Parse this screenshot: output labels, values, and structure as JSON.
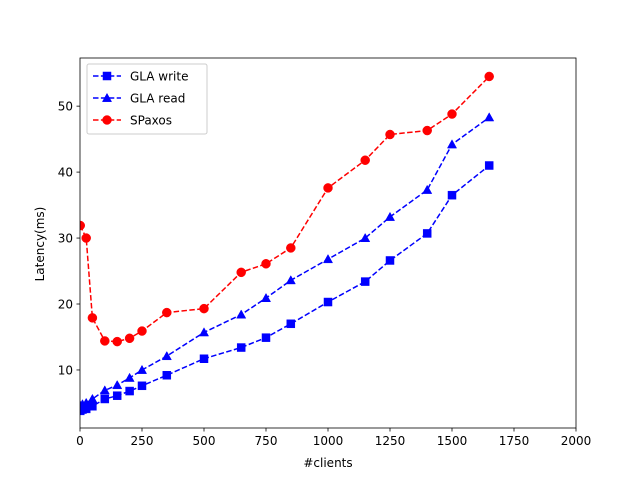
{
  "chart_data": {
    "type": "line",
    "title": "",
    "xlabel": "#clients",
    "ylabel": "Latency(ms)",
    "xlim": [
      0,
      2000
    ],
    "ylim": [
      1.2,
      57.3
    ],
    "xticks": [
      0,
      250,
      500,
      750,
      1000,
      1250,
      1500,
      1750,
      2000
    ],
    "yticks": [
      10,
      20,
      30,
      40,
      50
    ],
    "grid": false,
    "legend_position": "top-left",
    "series": [
      {
        "name": "GLA write",
        "color": "#0000ff",
        "marker": "square",
        "linestyle": "dashed",
        "x": [
          1,
          10,
          25,
          50,
          100,
          150,
          200,
          250,
          350,
          500,
          650,
          750,
          850,
          1000,
          1150,
          1250,
          1400,
          1500,
          1650
        ],
        "y": [
          3.8,
          4.0,
          4.1,
          4.5,
          5.6,
          6.1,
          6.8,
          7.6,
          9.2,
          11.7,
          13.4,
          14.9,
          17.0,
          20.3,
          23.4,
          26.6,
          30.7,
          36.5,
          41.0
        ]
      },
      {
        "name": "GLA read",
        "color": "#0000ff",
        "marker": "triangle",
        "linestyle": "dashed",
        "x": [
          1,
          10,
          25,
          50,
          100,
          150,
          200,
          250,
          350,
          500,
          650,
          750,
          850,
          1000,
          1150,
          1250,
          1400,
          1500,
          1650
        ],
        "y": [
          4.6,
          4.8,
          5.0,
          5.6,
          6.9,
          7.7,
          8.8,
          10.0,
          12.1,
          15.7,
          18.4,
          20.9,
          23.6,
          26.8,
          30.0,
          33.2,
          37.3,
          44.2,
          48.3
        ]
      },
      {
        "name": "SPaxos",
        "color": "#ff0000",
        "marker": "circle",
        "linestyle": "dashed",
        "x": [
          1,
          50,
          100,
          150,
          200,
          250,
          350,
          500,
          650,
          750,
          850,
          1000,
          1150,
          1250,
          1400,
          1500,
          1650
        ],
        "y": [
          31.9,
          17.9,
          14.4,
          14.3,
          14.8,
          15.9,
          18.7,
          19.3,
          24.8,
          26.1,
          28.5,
          37.6,
          41.8,
          45.7,
          46.3,
          48.8,
          54.5
        ],
        "extra_points": [
          [
            25,
            30.0
          ]
        ]
      }
    ]
  }
}
